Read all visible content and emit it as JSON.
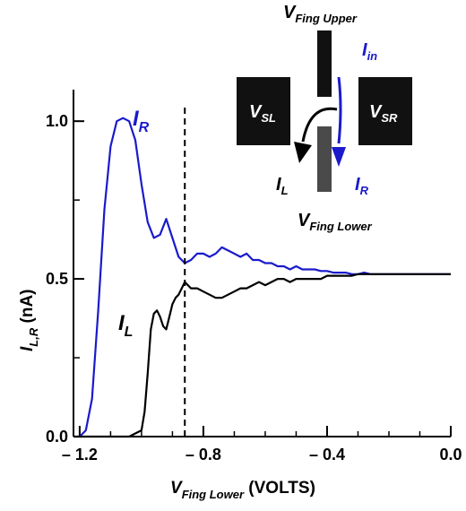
{
  "chart_data": {
    "type": "line",
    "xlabel": {
      "base": "V",
      "sub": "Fing Lower",
      "rest": " (VOLTS)"
    },
    "ylabel": {
      "base": "I",
      "sub": "L,R",
      "rest": " (nA)"
    },
    "xlim": [
      -1.22,
      0.0
    ],
    "ylim": [
      0.0,
      1.1
    ],
    "xticks": [
      -1.2,
      -0.8,
      -0.4,
      0.0
    ],
    "xtick_labels": [
      "– 1.2",
      "– 0.8",
      "– 0.4",
      "0.0"
    ],
    "yticks": [
      0.0,
      0.5,
      1.0
    ],
    "ytick_labels": [
      "0.0",
      "0.5",
      "1.0"
    ],
    "vline_x": -0.86,
    "grid": false,
    "series": [
      {
        "name": "I_R",
        "label": {
          "base": "I",
          "sub": "R"
        },
        "color": "#1a1acc",
        "x": [
          -1.2,
          -1.18,
          -1.16,
          -1.14,
          -1.12,
          -1.1,
          -1.08,
          -1.06,
          -1.04,
          -1.02,
          -1.0,
          -0.98,
          -0.96,
          -0.94,
          -0.92,
          -0.9,
          -0.88,
          -0.86,
          -0.84,
          -0.82,
          -0.8,
          -0.78,
          -0.76,
          -0.74,
          -0.72,
          -0.7,
          -0.68,
          -0.66,
          -0.64,
          -0.62,
          -0.6,
          -0.58,
          -0.56,
          -0.54,
          -0.52,
          -0.5,
          -0.48,
          -0.46,
          -0.44,
          -0.42,
          -0.4,
          -0.38,
          -0.36,
          -0.34,
          -0.32,
          -0.3,
          -0.28,
          -0.26,
          -0.24,
          -0.22,
          -0.2,
          -0.1,
          0.0
        ],
        "y": [
          0.0,
          0.02,
          0.12,
          0.4,
          0.72,
          0.92,
          1.0,
          1.01,
          1.0,
          0.94,
          0.8,
          0.68,
          0.63,
          0.64,
          0.69,
          0.63,
          0.57,
          0.55,
          0.56,
          0.58,
          0.58,
          0.57,
          0.58,
          0.6,
          0.59,
          0.58,
          0.57,
          0.58,
          0.56,
          0.56,
          0.55,
          0.55,
          0.54,
          0.54,
          0.53,
          0.54,
          0.53,
          0.53,
          0.53,
          0.525,
          0.525,
          0.52,
          0.52,
          0.52,
          0.515,
          0.515,
          0.52,
          0.515,
          0.515,
          0.515,
          0.515,
          0.515,
          0.515
        ]
      },
      {
        "name": "I_L",
        "label": {
          "base": "I",
          "sub": "L"
        },
        "color": "#000000",
        "x": [
          -1.22,
          -1.1,
          -1.04,
          -1.0,
          -0.99,
          -0.98,
          -0.97,
          -0.96,
          -0.95,
          -0.94,
          -0.93,
          -0.92,
          -0.91,
          -0.9,
          -0.89,
          -0.88,
          -0.87,
          -0.86,
          -0.85,
          -0.84,
          -0.82,
          -0.8,
          -0.78,
          -0.76,
          -0.74,
          -0.72,
          -0.7,
          -0.68,
          -0.66,
          -0.64,
          -0.62,
          -0.6,
          -0.58,
          -0.56,
          -0.54,
          -0.52,
          -0.5,
          -0.48,
          -0.46,
          -0.44,
          -0.42,
          -0.4,
          -0.38,
          -0.36,
          -0.34,
          -0.32,
          -0.3,
          -0.28,
          -0.26,
          -0.24,
          -0.22,
          -0.2,
          -0.1,
          0.0
        ],
        "y": [
          0.0,
          0.0,
          0.0,
          0.02,
          0.08,
          0.2,
          0.34,
          0.39,
          0.4,
          0.38,
          0.35,
          0.34,
          0.38,
          0.42,
          0.44,
          0.45,
          0.47,
          0.49,
          0.48,
          0.47,
          0.47,
          0.46,
          0.45,
          0.44,
          0.44,
          0.45,
          0.46,
          0.47,
          0.47,
          0.48,
          0.49,
          0.48,
          0.49,
          0.5,
          0.5,
          0.49,
          0.5,
          0.5,
          0.5,
          0.5,
          0.5,
          0.51,
          0.51,
          0.51,
          0.51,
          0.51,
          0.515,
          0.515,
          0.515,
          0.515,
          0.515,
          0.515,
          0.515,
          0.515
        ]
      }
    ]
  },
  "inset": {
    "top_label": {
      "base": "V",
      "sub": "Fing Upper"
    },
    "bottom_label": {
      "base": "V",
      "sub": "Fing Lower"
    },
    "left_box": {
      "base": "V",
      "sub": "SL"
    },
    "right_box": {
      "base": "V",
      "sub": "SR"
    },
    "in_label": {
      "base": "I",
      "sub": "in"
    },
    "out_left": {
      "base": "I",
      "sub": "L"
    },
    "out_right": {
      "base": "I",
      "sub": "R"
    },
    "colors": {
      "blue": "#1a1acc",
      "box": "#111111",
      "finger_lower": "#4a4a4a"
    }
  }
}
